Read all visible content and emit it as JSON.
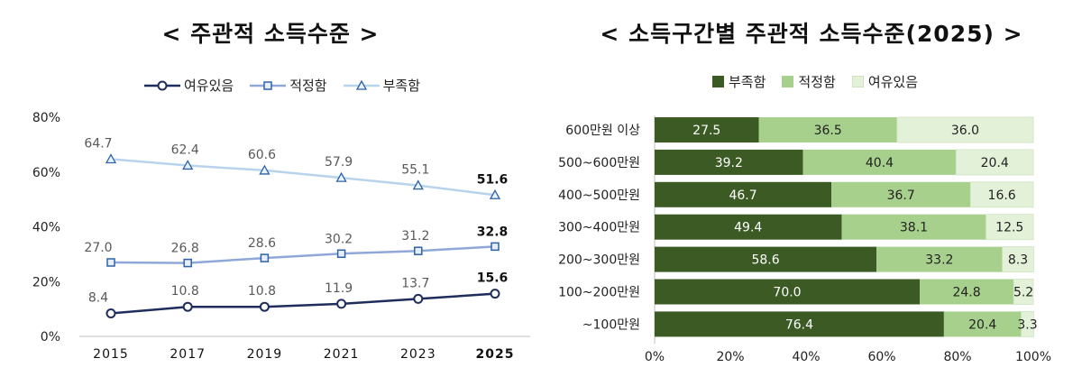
{
  "line_panel": {
    "title": "< 주관적 소득수준 >",
    "legend": [
      "여유있음",
      "적정함",
      "부족함"
    ],
    "colors": {
      "여유있음": "#1f2d5c",
      "적정함": "#8fa8d8",
      "부족함": "#b8d3ec"
    }
  },
  "bar_panel": {
    "title": "< 소득구간별 주관적 소득수준(2025) >",
    "legend": [
      "부족함",
      "적정함",
      "여유있음"
    ],
    "colors": {
      "부족함": "#3c5a24",
      "적정함": "#a8d08d",
      "여유있음": "#e4f1d9"
    }
  },
  "chart_data": [
    {
      "type": "line",
      "title": "< 주관적 소득수준 >",
      "x": [
        "2015",
        "2017",
        "2019",
        "2021",
        "2023",
        "2025"
      ],
      "ylim": [
        0,
        80
      ],
      "yticks": [
        "0%",
        "20%",
        "40%",
        "60%",
        "80%"
      ],
      "grid": false,
      "legend_position": "top",
      "series": [
        {
          "name": "여유있음",
          "values": [
            8.4,
            10.8,
            10.8,
            11.9,
            13.7,
            15.6
          ],
          "marker": "circle"
        },
        {
          "name": "적정함",
          "values": [
            27.0,
            26.8,
            28.6,
            30.2,
            31.2,
            32.8
          ],
          "marker": "square"
        },
        {
          "name": "부족함",
          "values": [
            64.7,
            62.4,
            60.6,
            57.9,
            55.1,
            51.6
          ],
          "marker": "triangle"
        }
      ]
    },
    {
      "type": "bar",
      "orientation": "horizontal",
      "stacked": true,
      "title": "< 소득구간별 주관적 소득수준(2025) >",
      "categories": [
        "600만원 이상",
        "500~600만원",
        "400~500만원",
        "300~400만원",
        "200~300만원",
        "100~200만원",
        "~100만원"
      ],
      "xlim": [
        0,
        100
      ],
      "xticks": [
        "0%",
        "20%",
        "40%",
        "60%",
        "80%",
        "100%"
      ],
      "legend_position": "top",
      "series": [
        {
          "name": "부족함",
          "values": [
            27.5,
            39.2,
            46.7,
            49.4,
            58.6,
            70.0,
            76.4
          ]
        },
        {
          "name": "적정함",
          "values": [
            36.5,
            40.4,
            36.7,
            38.1,
            33.2,
            24.8,
            20.4
          ]
        },
        {
          "name": "여유있음",
          "values": [
            36.0,
            20.4,
            16.6,
            12.5,
            8.3,
            5.2,
            3.3
          ]
        }
      ]
    }
  ]
}
